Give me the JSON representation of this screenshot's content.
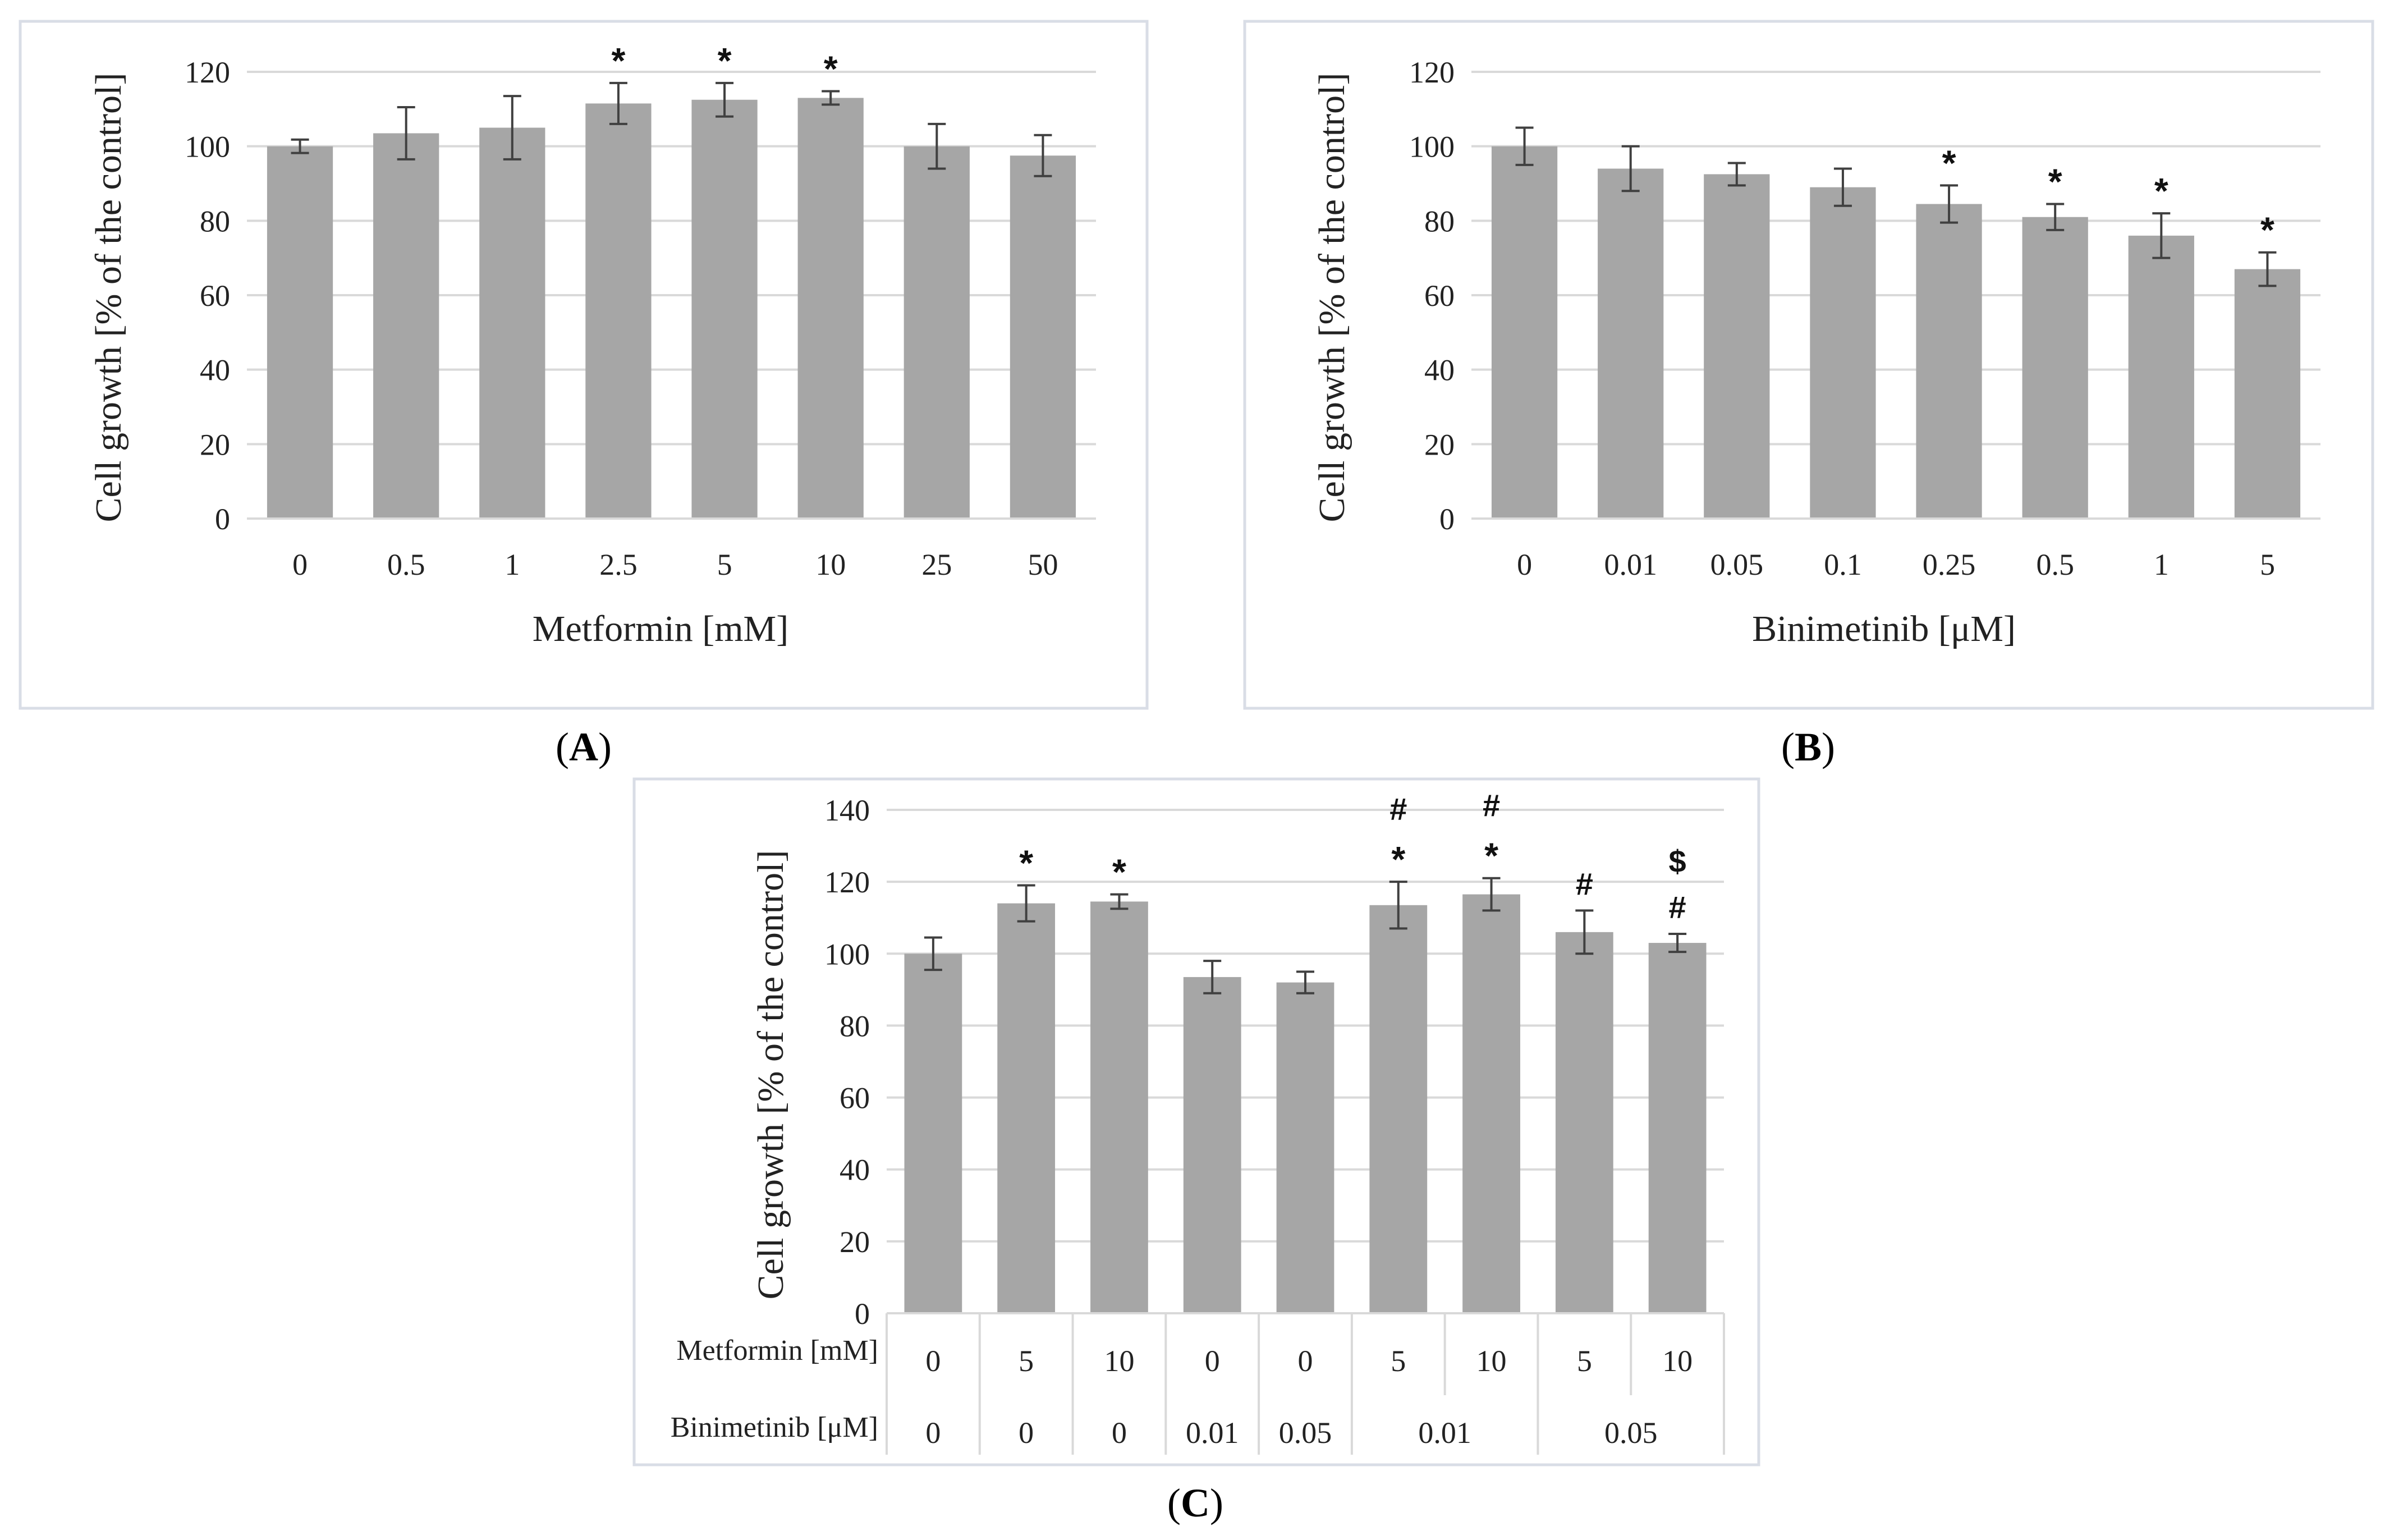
{
  "chart_data": [
    {
      "type": "bar",
      "panel_label": "A",
      "xlabel": "Metformin [mM]",
      "ylabel": "Cell growth [% of the control]",
      "ylim": [
        0,
        120
      ],
      "yticks": [
        "0",
        "20",
        "40",
        "60",
        "80",
        "100",
        "120"
      ],
      "grid": true,
      "categories": [
        "0",
        "0.5",
        "1",
        "2.5",
        "5",
        "10",
        "25",
        "50"
      ],
      "values": [
        100,
        103.5,
        105,
        111.5,
        112.5,
        113,
        100,
        97.5
      ],
      "errors": [
        1.8,
        7,
        8.5,
        5.5,
        4.5,
        1.8,
        6,
        5.5
      ],
      "annotations": [
        "",
        "",
        "",
        "*",
        "*",
        "*",
        "",
        ""
      ],
      "bar_color": "#a6a6a6"
    },
    {
      "type": "bar",
      "panel_label": "B",
      "xlabel": "Binimetinib [μM]",
      "ylabel": "Cell growth [% of the control]",
      "ylim": [
        0,
        120
      ],
      "yticks": [
        "0",
        "20",
        "40",
        "60",
        "80",
        "100",
        "120"
      ],
      "grid": true,
      "categories": [
        "0",
        "0.01",
        "0.05",
        "0.1",
        "0.25",
        "0.5",
        "1",
        "5"
      ],
      "values": [
        100,
        94,
        92.5,
        89,
        84.5,
        81,
        76,
        67
      ],
      "errors": [
        5,
        6,
        3,
        5,
        5,
        3.5,
        6,
        4.5
      ],
      "annotations": [
        "",
        "",
        "",
        "",
        "*",
        "*",
        "*",
        "*"
      ],
      "bar_color": "#a6a6a6"
    },
    {
      "type": "bar",
      "panel_label": "C",
      "ylabel": "Cell growth [% of the control]",
      "ylim": [
        0,
        140
      ],
      "yticks": [
        "0",
        "20",
        "40",
        "60",
        "80",
        "100",
        "120",
        "140"
      ],
      "grid": true,
      "row_labels": [
        "Metformin [mM]",
        "Binimetinib [μM]"
      ],
      "metformin": [
        "0",
        "5",
        "10",
        "0",
        "0",
        "5",
        "10",
        "5",
        "10"
      ],
      "binimetinib_groups": [
        {
          "label": "0",
          "span": 1
        },
        {
          "label": "0",
          "span": 1
        },
        {
          "label": "0",
          "span": 1
        },
        {
          "label": "0.01",
          "span": 1
        },
        {
          "label": "0.05",
          "span": 1
        },
        {
          "label": "0.01",
          "span": 2
        },
        {
          "label": "0.05",
          "span": 2
        }
      ],
      "values": [
        100,
        114,
        114.5,
        93.5,
        92,
        113.5,
        116.5,
        106,
        103
      ],
      "errors": [
        4.5,
        5,
        2,
        4.5,
        3,
        6.5,
        4.5,
        6,
        2.5
      ],
      "annotations": [
        [],
        [
          "*"
        ],
        [
          "*"
        ],
        [],
        [],
        [
          "#",
          "*"
        ],
        [
          "#",
          "*"
        ],
        [
          "#"
        ],
        [
          "$",
          "#"
        ]
      ],
      "bar_color": "#a6a6a6"
    }
  ]
}
